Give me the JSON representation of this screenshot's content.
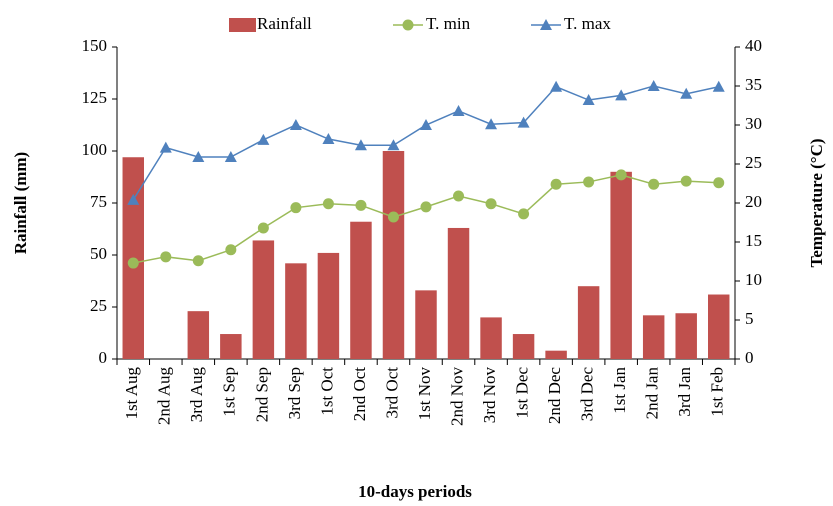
{
  "chart_data": {
    "type": "bar",
    "x_label": "10-days periods",
    "y_label": "Rainfall (mm)",
    "y2_label": "Temperature (°C)",
    "categories": [
      "1st Aug",
      "2nd Aug",
      "3rd Aug",
      "1st Sep",
      "2nd Sep",
      "3rd Sep",
      "1st Oct",
      "2nd Oct",
      "3rd Oct",
      "1st Nov",
      "2nd Nov",
      "3rd Nov",
      "1st Dec",
      "2nd Dec",
      "3rd Dec",
      "1st Jan",
      "2nd Jan",
      "3rd Jan",
      "1st Feb"
    ],
    "series": [
      {
        "name": "Rainfall",
        "color": "#c0504d",
        "type": "bar",
        "axis": "y",
        "values": [
          97,
          0,
          23,
          12,
          57,
          46,
          51,
          66,
          100,
          33,
          63,
          20,
          12,
          4,
          35,
          90,
          21,
          22,
          31
        ]
      },
      {
        "name": "T. min",
        "color": "#9bbb59",
        "type": "line",
        "marker": "circle",
        "axis": "y2",
        "values": [
          12.3,
          13.1,
          12.6,
          14.0,
          16.8,
          19.4,
          19.9,
          19.7,
          18.2,
          19.5,
          20.9,
          19.9,
          18.6,
          22.4,
          22.7,
          23.6,
          22.4,
          22.8,
          22.6
        ]
      },
      {
        "name": "T. max",
        "color": "#4f81bd",
        "type": "line",
        "marker": "triangle",
        "axis": "y2",
        "values": [
          20.4,
          27.1,
          25.9,
          25.9,
          28.1,
          30.0,
          28.2,
          27.4,
          27.4,
          30.0,
          31.8,
          30.1,
          30.3,
          34.9,
          33.2,
          33.8,
          35.0,
          34.0,
          34.9
        ]
      }
    ],
    "ylim": [
      0,
      150
    ],
    "yticks": [
      0,
      25,
      50,
      75,
      100,
      125,
      150
    ],
    "y2lim": [
      0,
      40
    ],
    "y2ticks": [
      0,
      5,
      10,
      15,
      20,
      25,
      30,
      35,
      40
    ],
    "legend": "top"
  }
}
